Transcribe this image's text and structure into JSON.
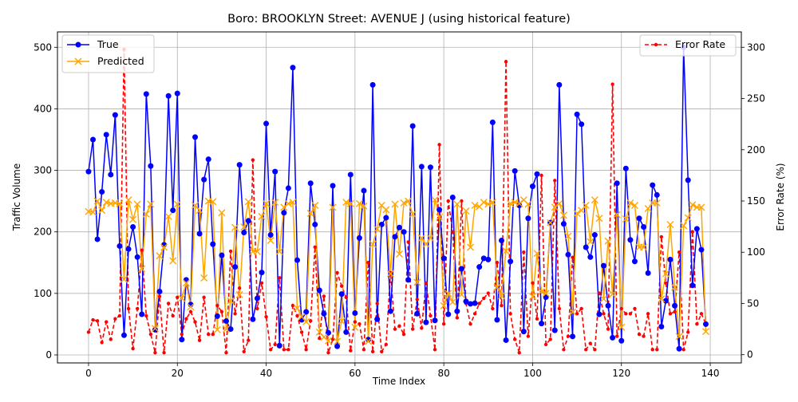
{
  "chart_data": {
    "type": "line",
    "title": "Boro: BROOKLYN Street: AVENUE J (using historical feature)",
    "xlabel": "Time Index",
    "ylabel": "Traffic Volume",
    "y2label": "Error Rate (%)",
    "xlim": [
      -7,
      147
    ],
    "ylim": [
      -13,
      525
    ],
    "y2lim": [
      -8,
      315
    ],
    "xticks": [
      0,
      20,
      40,
      60,
      80,
      100,
      120,
      140
    ],
    "yticks": [
      0,
      100,
      200,
      300,
      400,
      500
    ],
    "y2ticks": [
      0,
      50,
      100,
      150,
      200,
      250,
      300
    ],
    "grid": true,
    "legend_left": {
      "placement": "upper-left",
      "entries": [
        "True",
        "Predicted"
      ]
    },
    "legend_right": {
      "placement": "upper-right",
      "entries": [
        "Error Rate"
      ]
    },
    "colors": {
      "true": "#0000ff",
      "predicted": "#ffa500",
      "error": "#ff0000",
      "grid": "#b0b0b0"
    },
    "series": [
      {
        "name": "True",
        "axis": "left",
        "values": [
          298,
          350,
          188,
          265,
          358,
          293,
          390,
          177,
          32,
          172,
          208,
          159,
          66,
          424,
          307,
          41,
          103,
          179,
          421,
          235,
          425,
          25,
          122,
          82,
          354,
          197,
          285,
          318,
          180,
          63,
          162,
          55,
          42,
          143,
          309,
          199,
          218,
          58,
          92,
          134,
          376,
          195,
          298,
          15,
          231,
          271,
          467,
          154,
          57,
          70,
          279,
          212,
          105,
          67,
          36,
          275,
          14,
          99,
          37,
          293,
          68,
          190,
          267,
          25,
          439,
          58,
          212,
          223,
          71,
          192,
          207,
          200,
          122,
          372,
          67,
          306,
          53,
          305,
          56,
          236,
          157,
          66,
          256,
          71,
          140,
          87,
          83,
          84,
          143,
          157,
          155,
          378,
          57,
          186,
          24,
          152,
          299,
          243,
          38,
          222,
          274,
          294,
          51,
          94,
          215,
          40,
          439,
          213,
          163,
          30,
          391,
          375,
          175,
          159,
          195,
          66,
          145,
          80,
          28,
          279,
          23,
          303,
          187,
          152,
          222,
          208,
          133,
          276,
          260,
          46,
          88,
          155,
          80,
          10,
          500,
          284,
          113,
          205,
          171,
          50
        ]
      },
      {
        "name": "Predicted",
        "axis": "left",
        "values": [
          233,
          232,
          250,
          235,
          248,
          246,
          247,
          246,
          123,
          252,
          220,
          245,
          140,
          229,
          245,
          43,
          161,
          175,
          225,
          153,
          245,
          92,
          117,
          78,
          243,
          235,
          125,
          250,
          249,
          41,
          231,
          42,
          88,
          207,
          98,
          208,
          249,
          168,
          168,
          225,
          246,
          186,
          248,
          168,
          240,
          246,
          248,
          76,
          62,
          54,
          230,
          243,
          37,
          29,
          23,
          240,
          22,
          55,
          248,
          246,
          45,
          246,
          242,
          22,
          180,
          205,
          243,
          236,
          132,
          245,
          164,
          247,
          250,
          229,
          118,
          190,
          180,
          190,
          252,
          224,
          80,
          100,
          86,
          245,
          98,
          234,
          175,
          243,
          241,
          248,
          245,
          248,
          110,
          96,
          169,
          246,
          248,
          246,
          252,
          245,
          95,
          165,
          103,
          100,
          215,
          240,
          246,
          227,
          193,
          70,
          230,
          235,
          243,
          184,
          252,
          222,
          91,
          185,
          99,
          228,
          45,
          221,
          247,
          243,
          175,
          175,
          238,
          247,
          247,
          91,
          132,
          212,
          110,
          30,
          210,
          223,
          244,
          240,
          240,
          38
        ]
      },
      {
        "name": "Error Rate",
        "axis": "right",
        "values": [
          22,
          34,
          33,
          12,
          32,
          15,
          35,
          38,
          298,
          45,
          6,
          45,
          102,
          38,
          20,
          2,
          57,
          2,
          50,
          38,
          56,
          20,
          35,
          42,
          32,
          14,
          56,
          20,
          20,
          48,
          42,
          2,
          101,
          40,
          65,
          3,
          14,
          190,
          45,
          70,
          37,
          5,
          10,
          75,
          5,
          5,
          48,
          38,
          22,
          5,
          33,
          105,
          16,
          57,
          2,
          15,
          80,
          67,
          56,
          4,
          32,
          30,
          5,
          90,
          3,
          50,
          3,
          10,
          80,
          25,
          28,
          20,
          110,
          25,
          54,
          26,
          70,
          38,
          5,
          205,
          30,
          150,
          120,
          36,
          150,
          50,
          30,
          40,
          50,
          55,
          60,
          45,
          90,
          48,
          286,
          40,
          15,
          2,
          100,
          18,
          70,
          35,
          175,
          10,
          15,
          170,
          45,
          5,
          18,
          95,
          40,
          45,
          5,
          11,
          5,
          60,
          40,
          25,
          264,
          18,
          45,
          40,
          40,
          45,
          20,
          18,
          40,
          5,
          5,
          115,
          70,
          40,
          42,
          100,
          5,
          22,
          120,
          30,
          40,
          30
        ]
      }
    ]
  }
}
